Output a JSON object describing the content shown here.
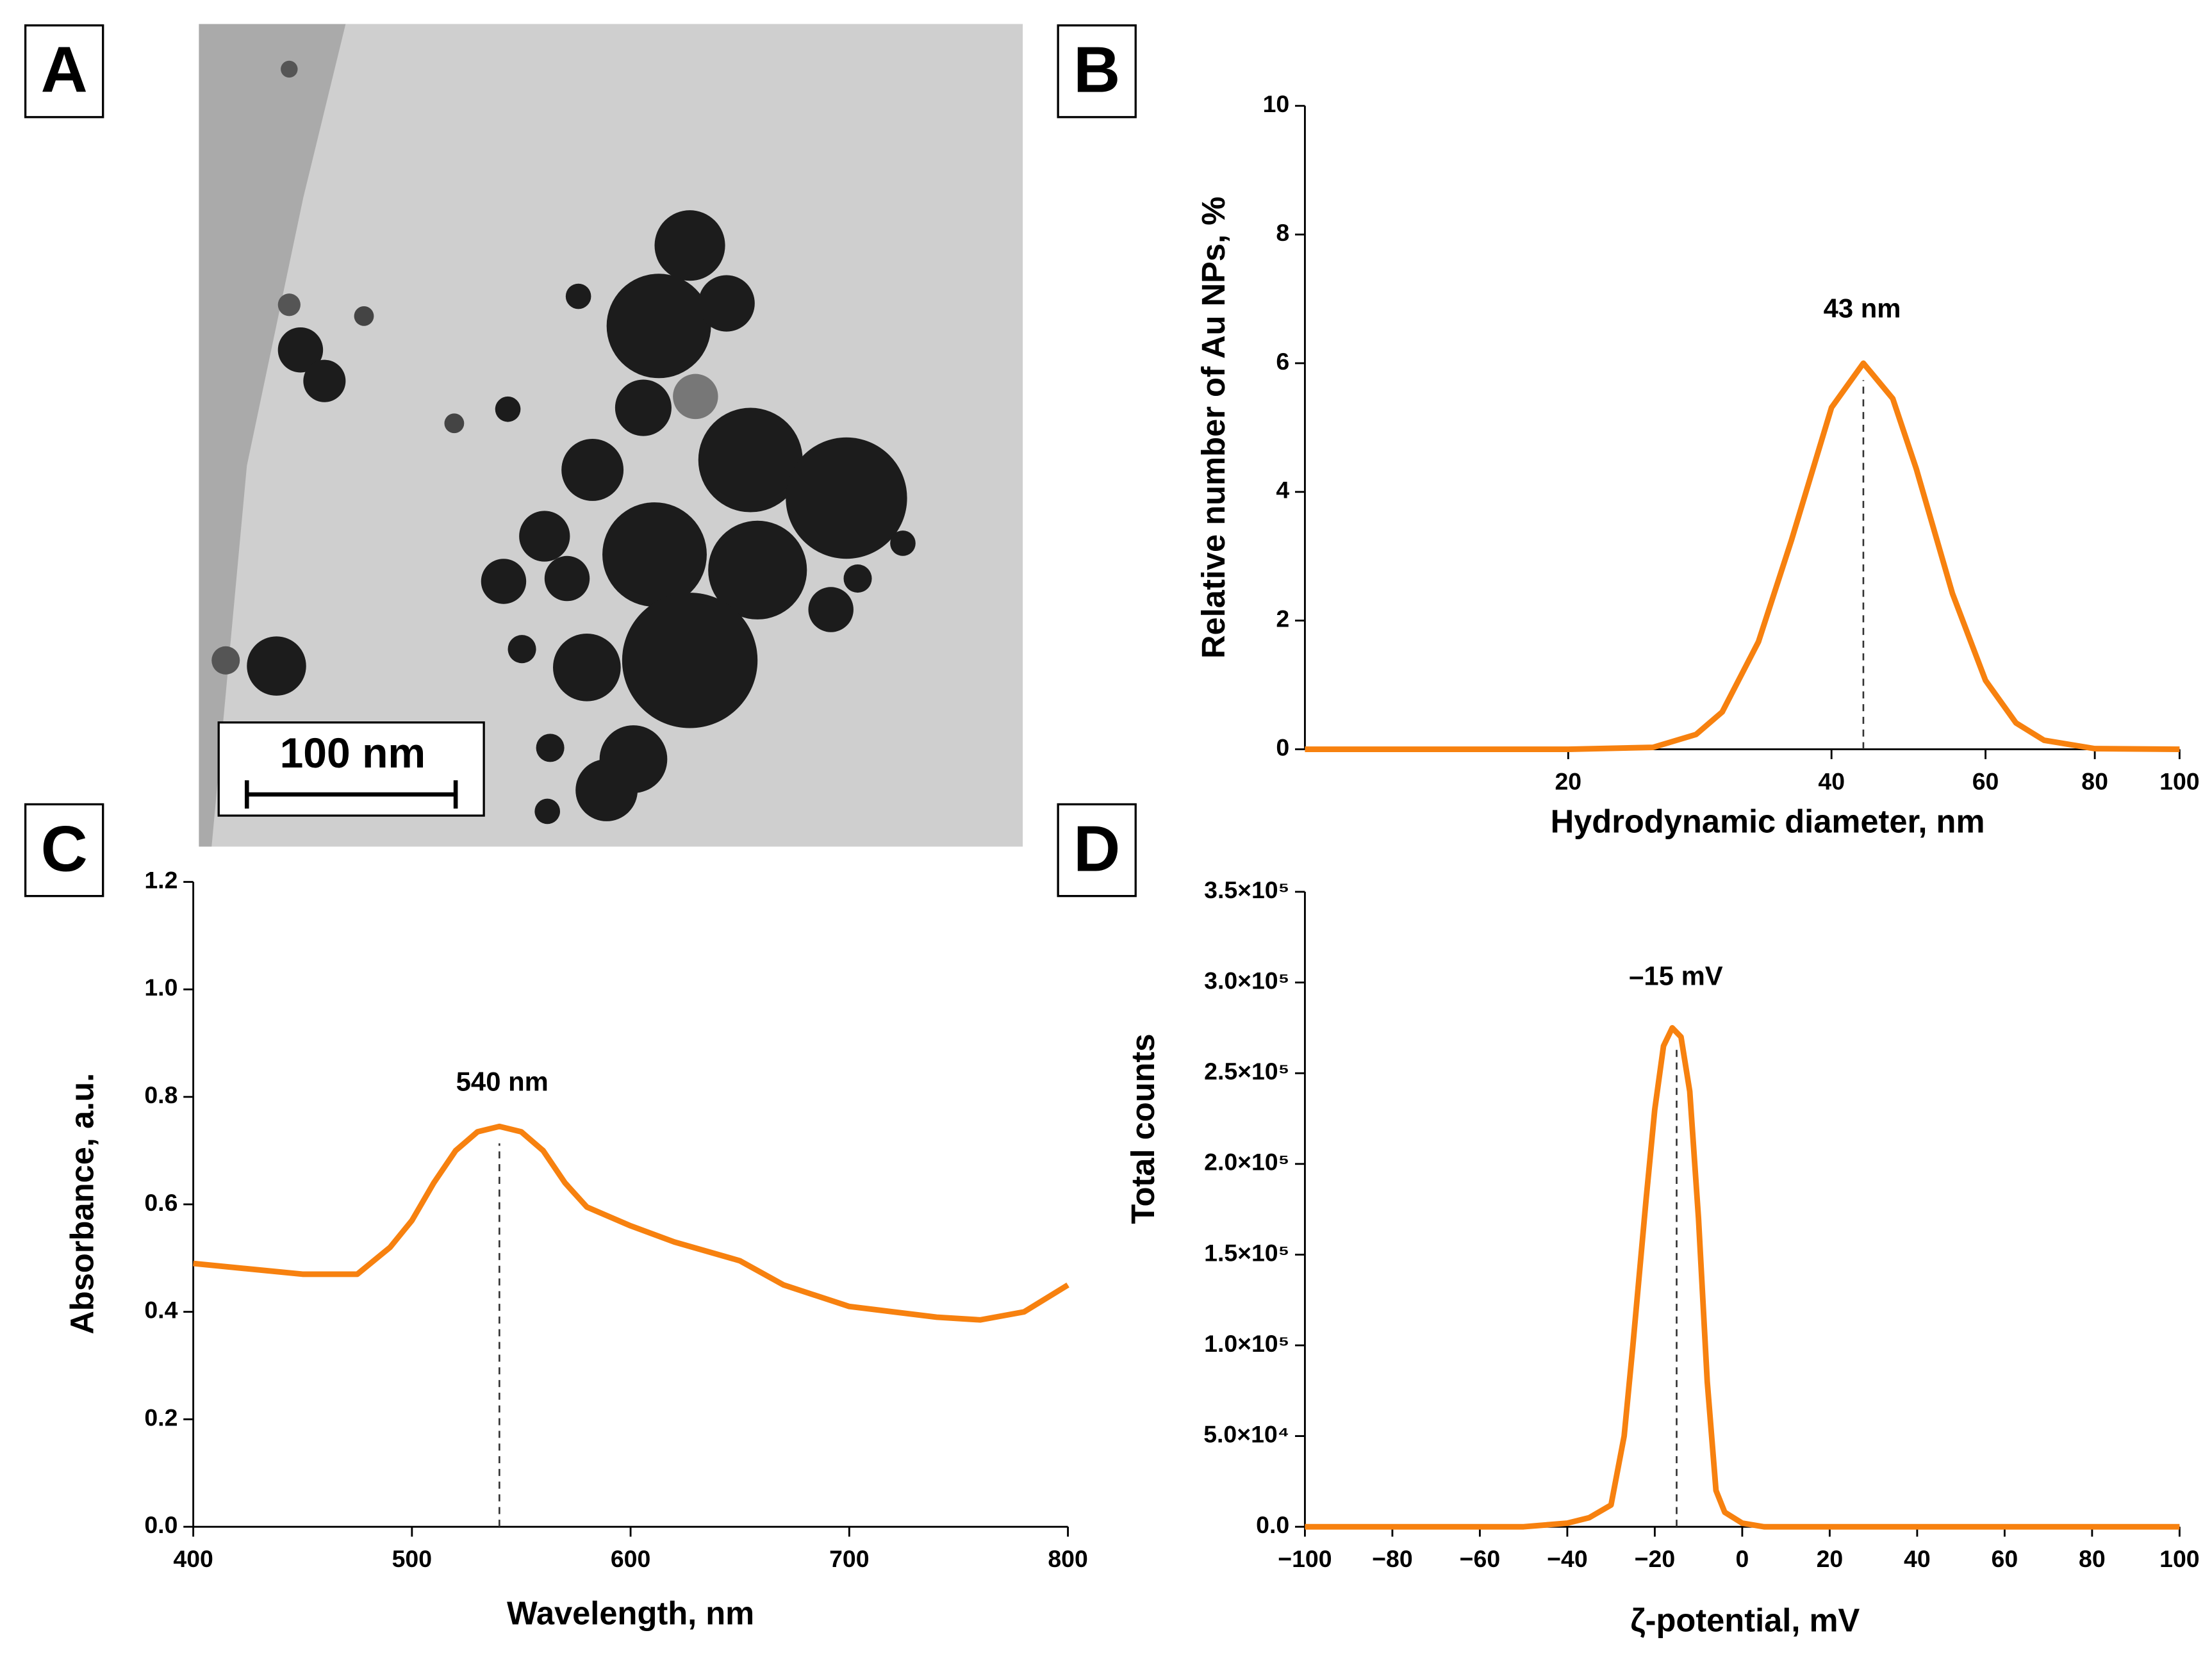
{
  "chart_data": [
    {
      "type": "image",
      "panel_label": "A",
      "scale_bar_label": "100 nm"
    },
    {
      "type": "line",
      "panel_label": "B",
      "x_label": "Hydrodynamic diameter, nm",
      "y_label": "Relative number of Au NPs, %",
      "annotation": "43 nm",
      "reference_line_x": 43.5,
      "color": "#f7810f",
      "x_log": true,
      "x": [
        10,
        20,
        25,
        28,
        30,
        33,
        36,
        40,
        43.5,
        47,
        50,
        55,
        60,
        65,
        70,
        80,
        100
      ],
      "values": [
        0,
        0,
        0.03,
        0.23,
        0.58,
        1.67,
        3.25,
        5.31,
        6.0,
        5.45,
        4.36,
        2.42,
        1.07,
        0.41,
        0.14,
        0.01,
        0
      ],
      "xlim": [
        10,
        100
      ],
      "xticks": [
        20,
        40,
        60,
        80,
        100
      ],
      "ylim": [
        0,
        10
      ],
      "yticks": [
        0,
        2,
        4,
        6,
        8,
        10
      ]
    },
    {
      "type": "line",
      "panel_label": "C",
      "x_label": "Wavelength, nm",
      "y_label": "Absorbance, a.u.",
      "annotation": "540 nm",
      "reference_line_x": 540,
      "color": "#f7810f",
      "x_log": false,
      "x": [
        400,
        450,
        475,
        490,
        500,
        510,
        520,
        530,
        540,
        550,
        560,
        570,
        580,
        600,
        620,
        650,
        670,
        700,
        740,
        760,
        780,
        800
      ],
      "values": [
        0.49,
        0.47,
        0.47,
        0.52,
        0.57,
        0.64,
        0.7,
        0.735,
        0.745,
        0.735,
        0.7,
        0.64,
        0.595,
        0.56,
        0.53,
        0.495,
        0.45,
        0.41,
        0.39,
        0.385,
        0.4,
        0.45
      ],
      "xlim": [
        400,
        800
      ],
      "xticks": [
        400,
        500,
        600,
        700,
        800
      ],
      "ylim": [
        0,
        1.2
      ],
      "yticks": [
        {
          "value": 0,
          "label": "0.0"
        },
        0.2,
        0.4,
        0.6,
        0.8,
        {
          "value": 1,
          "label": "1.0"
        },
        1.2
      ]
    },
    {
      "type": "line",
      "panel_label": "D",
      "x_label": "ζ-potential, mV",
      "y_label": "Total counts",
      "annotation": "–15 mV",
      "reference_line_x": -15,
      "color": "#f7810f",
      "x_log": false,
      "x": [
        -100,
        -50,
        -40,
        -35,
        -30,
        -27,
        -25,
        -22,
        -20,
        -18,
        -16,
        -14,
        -12,
        -10,
        -8,
        -6,
        -4,
        -2,
        0,
        5,
        100
      ],
      "values": [
        0,
        0,
        2000,
        5000,
        12000,
        50000,
        100000,
        180000,
        230000,
        265000,
        275000,
        270000,
        240000,
        170000,
        80000,
        20000,
        8000,
        5000,
        2000,
        0,
        0
      ],
      "xlim": [
        -100,
        100
      ],
      "xticks": [
        {
          "value": -100,
          "label": "−100"
        },
        {
          "value": -80,
          "label": "−80"
        },
        {
          "value": -60,
          "label": "−60"
        },
        {
          "value": -40,
          "label": "−40"
        },
        {
          "value": -20,
          "label": "−20"
        },
        0,
        20,
        40,
        60,
        80,
        100
      ],
      "ylim": [
        0,
        350000
      ],
      "yticks": [
        {
          "value": 0,
          "label": "0.0"
        },
        {
          "value": 50000,
          "label": "5.0×10⁴"
        },
        {
          "value": 100000,
          "label": "1.0×10⁵"
        },
        {
          "value": 150000,
          "label": "1.5×10⁵"
        },
        {
          "value": 200000,
          "label": "2.0×10⁵"
        },
        {
          "value": 250000,
          "label": "2.5×10⁵"
        },
        {
          "value": 300000,
          "label": "3.0×10⁵"
        },
        {
          "value": 350000,
          "label": "3.5×10⁵"
        }
      ]
    }
  ]
}
